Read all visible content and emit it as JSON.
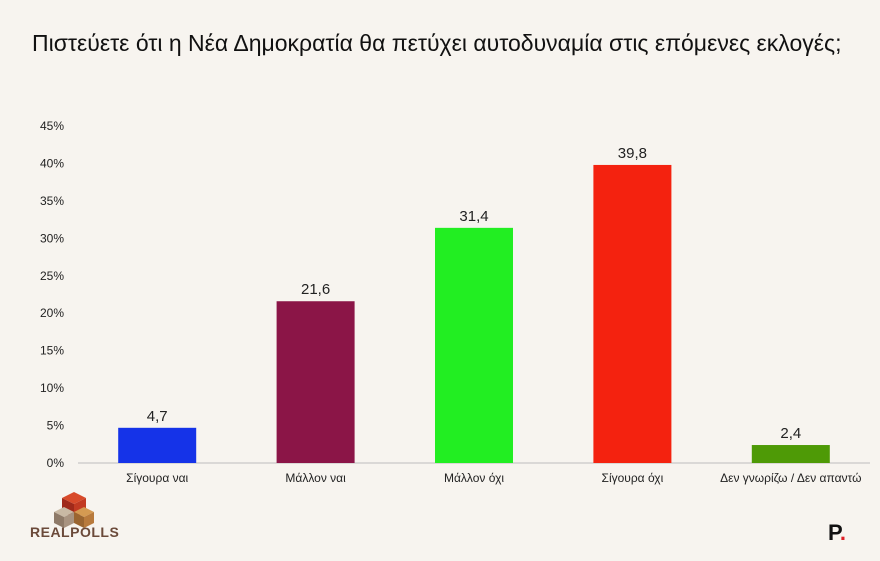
{
  "title": "Πιστεύετε ότι η Νέα Δημοκρατία θα πετύχει αυτοδυναμία στις επόμενες εκλογές;",
  "chart_data": {
    "type": "bar",
    "categories": [
      "Σίγουρα ναι",
      "Μάλλον ναι",
      "Μάλλον όχι",
      "Σίγουρα όχι",
      "Δεν γνωρίζω / Δεν απαντώ"
    ],
    "values": [
      4.7,
      21.6,
      31.4,
      39.8,
      2.4
    ],
    "value_labels": [
      "4,7",
      "21,6",
      "31,4",
      "39,8",
      "2,4"
    ],
    "colors": [
      "#1533e8",
      "#8b1547",
      "#22ee22",
      "#f4220f",
      "#4e9a06"
    ],
    "ylim": [
      0,
      45
    ],
    "yticks": [
      0,
      5,
      10,
      15,
      20,
      25,
      30,
      35,
      40,
      45
    ],
    "ytick_labels": [
      "0%",
      "5%",
      "10%",
      "15%",
      "20%",
      "25%",
      "30%",
      "35%",
      "40%",
      "45%"
    ],
    "grid": false
  },
  "logo": {
    "text": "REALPOLLS"
  },
  "brand": {
    "letter": "P",
    "dot": "."
  }
}
